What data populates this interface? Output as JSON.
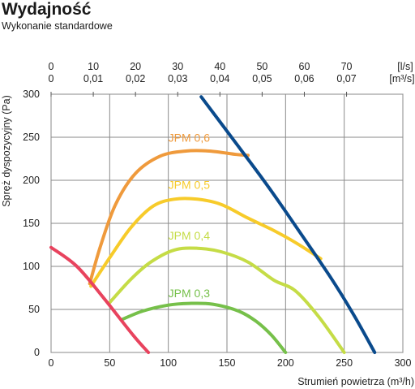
{
  "header": {
    "title": "Wydajność",
    "subtitle": "Wykonanie standardowe"
  },
  "chart_data": {
    "type": "line",
    "xlabel": "Strumień powietrza (m³/h)",
    "ylabel": "Spręż dyspozycyjny (Pa)",
    "xlim": [
      0,
      300
    ],
    "ylim": [
      0,
      300
    ],
    "xticks": [
      "0",
      "50",
      "100",
      "150",
      "200",
      "250",
      "300"
    ],
    "yticks": [
      "0",
      "50",
      "100",
      "150",
      "200",
      "250",
      "300"
    ],
    "top_axis_ls": {
      "unit": "[l/s]",
      "ticks": [
        "0",
        "10",
        "20",
        "30",
        "40",
        "50",
        "60",
        "70"
      ]
    },
    "top_axis_m3s": {
      "unit": "[m³/s]",
      "ticks": [
        "0",
        "0,01",
        "0,02",
        "0,03",
        "0,04",
        "0,05",
        "0,06",
        "0,07"
      ]
    },
    "grid": true,
    "series": [
      {
        "name": "JPM 0,6",
        "color": "#ef9a3c",
        "points": [
          [
            33,
            80
          ],
          [
            42,
            123
          ],
          [
            55,
            172
          ],
          [
            72,
            208
          ],
          [
            93,
            228
          ],
          [
            115,
            234
          ],
          [
            135,
            234
          ],
          [
            158,
            230
          ],
          [
            168,
            229
          ]
        ]
      },
      {
        "name": "JPM 0,5",
        "color": "#f7cb2a",
        "points": [
          [
            34,
            77
          ],
          [
            50,
            110
          ],
          [
            68,
            145
          ],
          [
            87,
            170
          ],
          [
            105,
            178
          ],
          [
            125,
            178
          ],
          [
            145,
            172
          ],
          [
            168,
            156
          ],
          [
            188,
            143
          ],
          [
            208,
            128
          ],
          [
            230,
            109
          ]
        ]
      },
      {
        "name": "JPM 0,4",
        "color": "#c5dc46",
        "points": [
          [
            50,
            58
          ],
          [
            68,
            85
          ],
          [
            85,
            105
          ],
          [
            105,
            119
          ],
          [
            125,
            121
          ],
          [
            145,
            117
          ],
          [
            168,
            105
          ],
          [
            190,
            84
          ],
          [
            208,
            72
          ],
          [
            228,
            42
          ],
          [
            250,
            0
          ]
        ]
      },
      {
        "name": "JPM 0,3",
        "color": "#76c04a",
        "points": [
          [
            60,
            38
          ],
          [
            78,
            48
          ],
          [
            100,
            55
          ],
          [
            118,
            57
          ],
          [
            138,
            56
          ],
          [
            160,
            48
          ],
          [
            175,
            36
          ],
          [
            188,
            20
          ],
          [
            200,
            0
          ]
        ]
      },
      {
        "name": "",
        "color": "#e8435e",
        "points": [
          [
            0,
            122
          ],
          [
            22,
            100
          ],
          [
            45,
            63
          ],
          [
            70,
            20
          ],
          [
            83,
            0
          ]
        ]
      },
      {
        "name": "",
        "color": "#0a4a8c",
        "points": [
          [
            128,
            297
          ],
          [
            155,
            248
          ],
          [
            185,
            193
          ],
          [
            212,
            140
          ],
          [
            238,
            88
          ],
          [
            258,
            44
          ],
          [
            276,
            0
          ]
        ]
      }
    ],
    "annotations": [
      {
        "text": "JPM 0,6",
        "x": 100,
        "y": 245,
        "color": "#ef9a3c"
      },
      {
        "text": "JPM 0,5",
        "x": 100,
        "y": 190,
        "color": "#f7cb2a"
      },
      {
        "text": "JPM 0,4",
        "x": 100,
        "y": 131,
        "color": "#c5dc46"
      },
      {
        "text": "JPM 0,3",
        "x": 100,
        "y": 64,
        "color": "#76c04a"
      }
    ]
  }
}
